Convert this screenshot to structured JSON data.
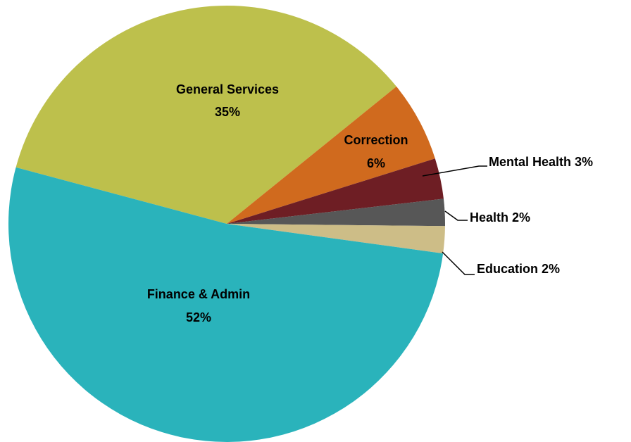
{
  "chart_data": {
    "type": "pie",
    "categories": [
      "General Services",
      "Correction",
      "Mental Health",
      "Health",
      "Education",
      "Finance & Admin"
    ],
    "values": [
      35,
      6,
      3,
      2,
      2,
      52
    ],
    "value_labels": [
      "35%",
      "6%",
      "3%",
      "2%",
      "2%",
      "52%"
    ],
    "colors": [
      "#bdc04c",
      "#d06a1e",
      "#6e1e24",
      "#575757",
      "#cdbd87",
      "#2ab3bb"
    ]
  }
}
